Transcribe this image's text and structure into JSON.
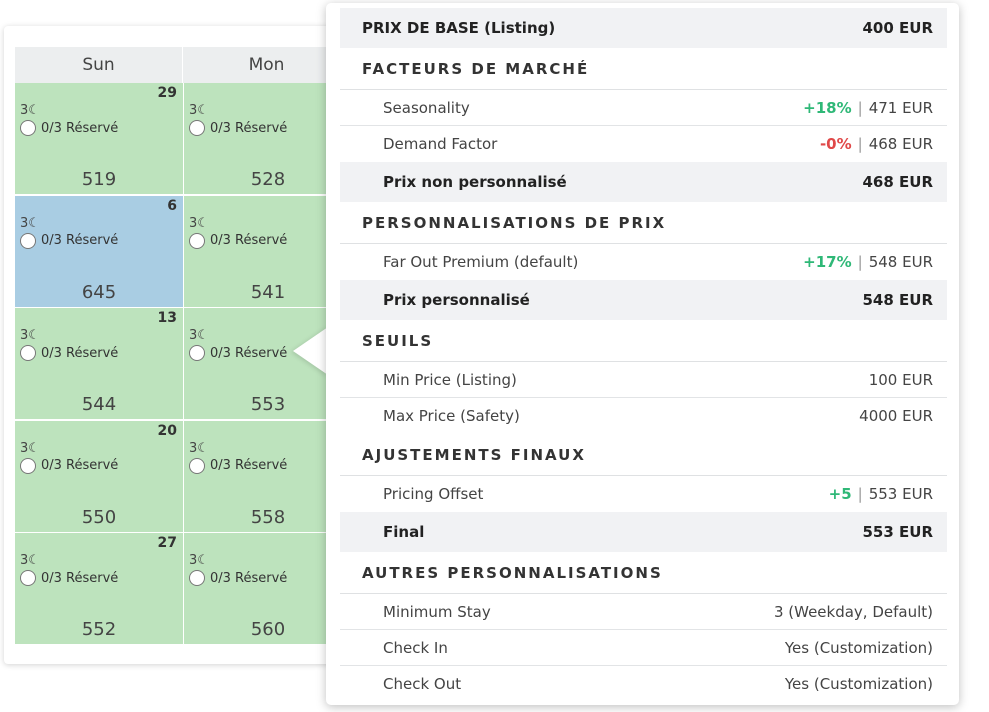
{
  "calendar": {
    "days": [
      "Sun",
      "Mon"
    ],
    "rows": [
      {
        "cells": [
          {
            "date": "29",
            "stay": "3☾",
            "reserved": "0/3 Réservé",
            "price": "519",
            "selected": false
          },
          {
            "date": "",
            "stay": "3☾",
            "reserved": "0/3 Réservé",
            "price": "528",
            "selected": false
          }
        ]
      },
      {
        "cells": [
          {
            "date": "6",
            "stay": "3☾",
            "reserved": "0/3 Réservé",
            "price": "645",
            "selected": true
          },
          {
            "date": "",
            "stay": "3☾",
            "reserved": "0/3 Réservé",
            "price": "541",
            "selected": false
          }
        ]
      },
      {
        "cells": [
          {
            "date": "13",
            "stay": "3☾",
            "reserved": "0/3 Réservé",
            "price": "544",
            "selected": false
          },
          {
            "date": "",
            "stay": "3☾",
            "reserved": "0/3 Réservé",
            "price": "553",
            "selected": false
          }
        ]
      },
      {
        "cells": [
          {
            "date": "20",
            "stay": "3☾",
            "reserved": "0/3 Réservé",
            "price": "550",
            "selected": false
          },
          {
            "date": "",
            "stay": "3☾",
            "reserved": "0/3 Réservé",
            "price": "558",
            "selected": false
          }
        ]
      },
      {
        "cells": [
          {
            "date": "27",
            "stay": "3☾",
            "reserved": "0/3 Réservé",
            "price": "552",
            "selected": false
          },
          {
            "date": "",
            "stay": "3☾",
            "reserved": "0/3 Réservé",
            "price": "560",
            "selected": false
          }
        ]
      }
    ],
    "colors": {
      "available": "#bde3bd",
      "selected": "#a9cde3"
    }
  },
  "popover": {
    "base": {
      "label": "PRIX DE BASE (Listing)",
      "value": "400 EUR"
    },
    "market": {
      "title": "FACTEURS DE MARCHÉ",
      "seasonality": {
        "label": "Seasonality",
        "delta": "+18%",
        "value": "471 EUR"
      },
      "demand": {
        "label": "Demand Factor",
        "delta": "-0%",
        "value": "468 EUR"
      },
      "subtotal": {
        "label": "Prix non personnalisé",
        "value": "468 EUR"
      }
    },
    "custom": {
      "title": "PERSONNALISATIONS DE PRIX",
      "farout": {
        "label": "Far Out Premium (default)",
        "delta": "+17%",
        "value": "548 EUR"
      },
      "subtotal": {
        "label": "Prix personnalisé",
        "value": "548 EUR"
      }
    },
    "thresholds": {
      "title": "SEUILS",
      "min": {
        "label": "Min Price (Listing)",
        "value": "100 EUR"
      },
      "max": {
        "label": "Max Price (Safety)",
        "value": "4000 EUR"
      }
    },
    "final_adj": {
      "title": "AJUSTEMENTS FINAUX",
      "offset": {
        "label": "Pricing Offset",
        "delta": "+5",
        "value": "553 EUR"
      },
      "final": {
        "label": "Final",
        "value": "553 EUR"
      }
    },
    "other": {
      "title": "AUTRES PERSONNALISATIONS",
      "minstay": {
        "label": "Minimum Stay",
        "value": "3 (Weekday, Default)"
      },
      "checkin": {
        "label": "Check In",
        "value": "Yes (Customization)"
      },
      "checkout": {
        "label": "Check Out",
        "value": "Yes (Customization)"
      }
    },
    "separator": "|",
    "colors": {
      "positive": "#2fb877",
      "negative": "#e04848"
    }
  }
}
